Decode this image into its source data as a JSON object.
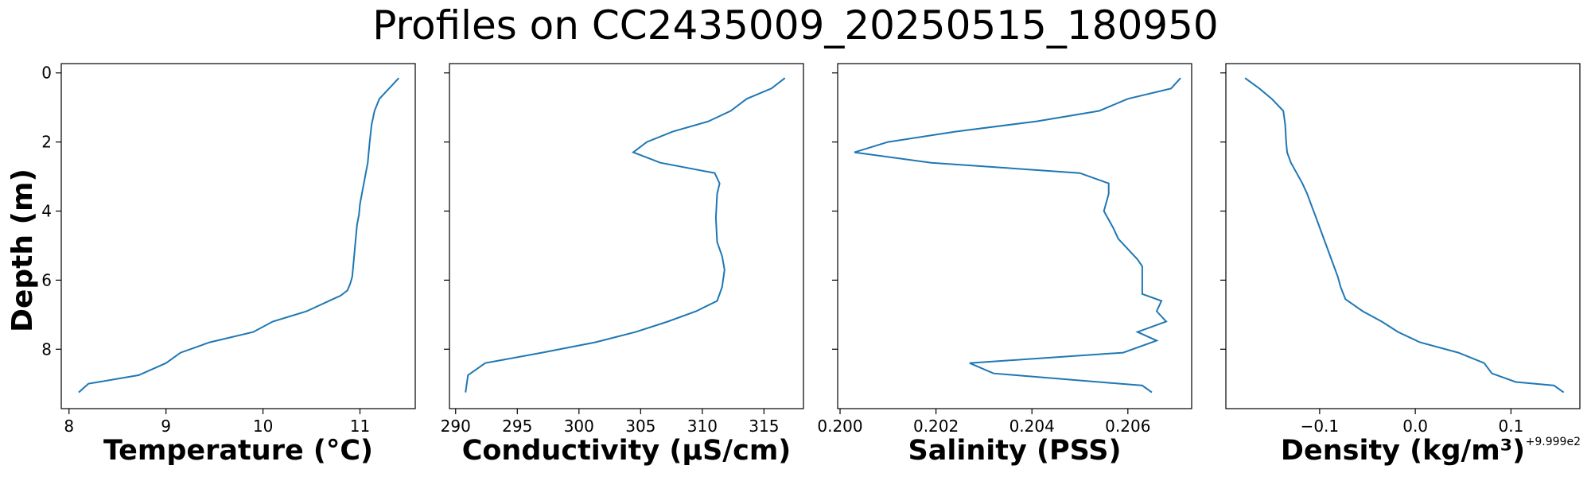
{
  "title": "Profiles on CC2435009_20250515_180950",
  "shared_ylabel": "Depth (m)",
  "colors": {
    "line": "#1f77b4",
    "axes": "#000000",
    "background": "#ffffff"
  },
  "chart_data": [
    {
      "type": "line",
      "xlabel": "Temperature (°C)",
      "ylabel": "Depth (m)",
      "xlim": [
        7.92,
        11.57
      ],
      "ylim": [
        9.72,
        -0.27
      ],
      "xticks": [
        8,
        9,
        10,
        11
      ],
      "xtick_labels": [
        "8",
        "9",
        "10",
        "11"
      ],
      "yticks": [
        0,
        2,
        4,
        6,
        8
      ],
      "ytick_labels": [
        "0",
        "2",
        "4",
        "6",
        "8"
      ],
      "offset_text": "",
      "grid": false,
      "series": [
        {
          "x": [
            11.4,
            11.3,
            11.2,
            11.15,
            11.12,
            11.1,
            11.09,
            11.08,
            11.06,
            11.04,
            11.02,
            11.0,
            10.99,
            10.97,
            10.96,
            10.95,
            10.94,
            10.93,
            10.92,
            10.9,
            10.87,
            10.8,
            10.72,
            10.45,
            10.1,
            9.9,
            9.45,
            9.15,
            9.0,
            8.72,
            8.2,
            8.1
          ],
          "y": [
            0.15,
            0.45,
            0.75,
            1.1,
            1.5,
            2.0,
            2.3,
            2.6,
            2.9,
            3.2,
            3.5,
            3.8,
            4.1,
            4.4,
            4.7,
            5.0,
            5.3,
            5.6,
            5.9,
            6.1,
            6.3,
            6.45,
            6.55,
            6.9,
            7.2,
            7.5,
            7.8,
            8.1,
            8.4,
            8.75,
            9.0,
            9.25
          ]
        }
      ]
    },
    {
      "type": "line",
      "xlabel": "Conductivity (μS/cm)",
      "ylabel": "",
      "xlim": [
        289.5,
        318.2
      ],
      "ylim": [
        9.72,
        -0.27
      ],
      "xticks": [
        290,
        295,
        300,
        305,
        310,
        315
      ],
      "xtick_labels": [
        "290",
        "295",
        "300",
        "305",
        "310",
        "315"
      ],
      "yticks": [
        0,
        2,
        4,
        6,
        8
      ],
      "ytick_labels": [],
      "offset_text": "",
      "grid": false,
      "series": [
        {
          "x": [
            316.7,
            315.6,
            313.6,
            312.3,
            310.5,
            307.6,
            305.5,
            304.4,
            306.6,
            311.0,
            311.4,
            311.2,
            311.1,
            311.2,
            311.6,
            311.8,
            311.6,
            311.2,
            309.5,
            307.2,
            304.6,
            301.3,
            297.0,
            292.4,
            291.0,
            290.8
          ],
          "y": [
            0.15,
            0.45,
            0.75,
            1.1,
            1.4,
            1.7,
            2.0,
            2.3,
            2.6,
            2.9,
            3.2,
            3.5,
            4.2,
            4.9,
            5.3,
            5.7,
            6.2,
            6.6,
            6.9,
            7.2,
            7.5,
            7.8,
            8.1,
            8.4,
            8.75,
            9.25
          ]
        }
      ]
    },
    {
      "type": "line",
      "xlabel": "Salinity (PSS)",
      "ylabel": "",
      "xlim": [
        0.19995,
        0.20733
      ],
      "ylim": [
        9.72,
        -0.27
      ],
      "xticks": [
        0.2,
        0.202,
        0.204,
        0.206
      ],
      "xtick_labels": [
        "0.200",
        "0.202",
        "0.204",
        "0.206"
      ],
      "yticks": [
        0,
        2,
        4,
        6,
        8
      ],
      "ytick_labels": [],
      "offset_text": "",
      "grid": false,
      "series": [
        {
          "x": [
            0.2071,
            0.2069,
            0.206,
            0.2054,
            0.2041,
            0.2024,
            0.201,
            0.2003,
            0.2019,
            0.205,
            0.2056,
            0.2056,
            0.2055,
            0.2057,
            0.2058,
            0.206,
            0.2062,
            0.2063,
            0.2063,
            0.2063,
            0.2067,
            0.2066,
            0.2068,
            0.2062,
            0.2066,
            0.2059,
            0.2027,
            0.2032,
            0.2063,
            0.2065
          ],
          "y": [
            0.15,
            0.45,
            0.75,
            1.1,
            1.4,
            1.7,
            2.0,
            2.3,
            2.6,
            2.9,
            3.2,
            3.5,
            4.0,
            4.5,
            4.8,
            5.1,
            5.4,
            5.6,
            6.0,
            6.4,
            6.6,
            6.9,
            7.2,
            7.5,
            7.75,
            8.1,
            8.4,
            8.7,
            9.05,
            9.25
          ]
        }
      ]
    },
    {
      "type": "line",
      "xlabel": "Density (kg/m³)",
      "ylabel": "",
      "xlim": [
        -0.198,
        0.172
      ],
      "ylim": [
        9.72,
        -0.27
      ],
      "xticks": [
        -0.1,
        0.0,
        0.1
      ],
      "xtick_labels": [
        "−0.1",
        "0.0",
        "0.1"
      ],
      "yticks": [
        0,
        2,
        4,
        6,
        8
      ],
      "ytick_labels": [],
      "offset_text": "+9.999e2",
      "grid": false,
      "series": [
        {
          "x": [
            -0.178,
            -0.163,
            -0.15,
            -0.138,
            -0.136,
            -0.135,
            -0.134,
            -0.13,
            -0.124,
            -0.118,
            -0.113,
            -0.109,
            -0.105,
            -0.101,
            -0.097,
            -0.093,
            -0.089,
            -0.085,
            -0.081,
            -0.078,
            -0.073,
            -0.055,
            -0.035,
            -0.018,
            0.005,
            0.045,
            0.072,
            0.08,
            0.105,
            0.145,
            0.155
          ],
          "y": [
            0.15,
            0.45,
            0.75,
            1.1,
            1.5,
            2.0,
            2.3,
            2.6,
            2.9,
            3.2,
            3.5,
            3.8,
            4.1,
            4.4,
            4.7,
            5.0,
            5.3,
            5.6,
            5.9,
            6.2,
            6.55,
            6.9,
            7.2,
            7.5,
            7.8,
            8.1,
            8.4,
            8.7,
            8.95,
            9.05,
            9.25
          ]
        }
      ]
    }
  ]
}
